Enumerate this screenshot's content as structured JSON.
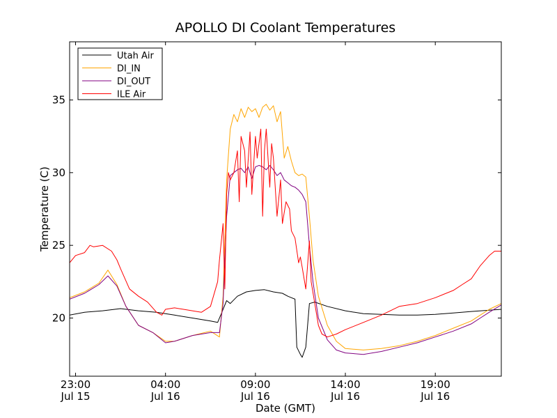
{
  "chart_data": {
    "type": "line",
    "title": "APOLLO DI Coolant Temperatures",
    "xlabel": "Date (GMT)",
    "ylabel": "Temperature (C)",
    "x_unit": "hours since Jul 15 00:00 GMT",
    "xlim": [
      22.67,
      46.67
    ],
    "ylim": [
      16,
      39
    ],
    "x_ticks": [
      {
        "value": 23,
        "time": "23:00",
        "date": "Jul 15"
      },
      {
        "value": 28,
        "time": "04:00",
        "date": "Jul 16"
      },
      {
        "value": 33,
        "time": "09:00",
        "date": "Jul 16"
      },
      {
        "value": 38,
        "time": "14:00",
        "date": "Jul 16"
      },
      {
        "value": 43,
        "time": "19:00",
        "date": "Jul 16"
      }
    ],
    "y_ticks": [
      {
        "value": 20,
        "label": "20"
      },
      {
        "value": 25,
        "label": "25"
      },
      {
        "value": 30,
        "label": "30"
      },
      {
        "value": 35,
        "label": "35"
      }
    ],
    "legend": {
      "position": "top-left"
    },
    "series": [
      {
        "name": "Utah Air",
        "color": "#000000",
        "x": [
          22.67,
          23.5,
          24.5,
          25.5,
          26.5,
          27.5,
          28.5,
          29.5,
          30.5,
          30.9,
          31.1,
          31.4,
          31.6,
          32.0,
          32.5,
          33.0,
          33.5,
          34.0,
          34.5,
          34.8,
          35.0,
          35.2,
          35.3,
          35.5,
          35.6,
          35.8,
          36.0,
          36.3,
          37.0,
          38.0,
          39.0,
          40.0,
          41.0,
          42.0,
          43.0,
          44.0,
          45.0,
          46.67
        ],
        "y": [
          20.2,
          20.4,
          20.5,
          20.65,
          20.5,
          20.4,
          20.2,
          20.0,
          19.8,
          19.7,
          20.3,
          21.2,
          21.0,
          21.5,
          21.8,
          21.9,
          21.95,
          21.8,
          21.7,
          21.5,
          21.4,
          21.3,
          18.0,
          17.5,
          17.3,
          18.0,
          21.0,
          21.1,
          20.8,
          20.5,
          20.3,
          20.25,
          20.2,
          20.2,
          20.25,
          20.35,
          20.45,
          20.6
        ]
      },
      {
        "name": "DI_IN",
        "color": "#ffa500",
        "x": [
          22.67,
          23.5,
          24.3,
          24.8,
          25.3,
          25.8,
          26.5,
          27.3,
          28.0,
          28.5,
          29.5,
          30.5,
          31.0,
          31.2,
          31.4,
          31.6,
          31.8,
          32.0,
          32.2,
          32.4,
          32.6,
          32.8,
          33.0,
          33.2,
          33.4,
          33.6,
          33.8,
          34.0,
          34.2,
          34.4,
          34.6,
          34.8,
          35.0,
          35.2,
          35.4,
          35.6,
          35.8,
          36.0,
          36.2,
          36.5,
          37.0,
          37.5,
          38.0,
          39.0,
          40.0,
          41.0,
          42.0,
          43.0,
          44.0,
          45.0,
          45.5,
          46.0,
          46.67
        ],
        "y": [
          21.4,
          21.8,
          22.4,
          23.3,
          22.3,
          20.8,
          19.5,
          19.0,
          18.4,
          18.4,
          18.8,
          19.1,
          18.7,
          21.5,
          29.5,
          33.0,
          34.0,
          33.5,
          34.4,
          33.8,
          34.5,
          34.2,
          34.4,
          33.8,
          34.5,
          34.7,
          34.3,
          34.6,
          33.5,
          34.2,
          31.0,
          31.8,
          30.8,
          30.0,
          29.8,
          29.9,
          29.7,
          27.0,
          24.0,
          21.5,
          19.5,
          18.4,
          17.9,
          17.8,
          17.9,
          18.1,
          18.4,
          18.8,
          19.3,
          19.8,
          20.2,
          20.6,
          21.0
        ]
      },
      {
        "name": "DI_OUT",
        "color": "#800080",
        "x": [
          22.67,
          23.5,
          24.3,
          24.8,
          25.3,
          25.8,
          26.5,
          27.3,
          28.0,
          28.5,
          29.5,
          30.5,
          31.0,
          31.2,
          31.4,
          31.6,
          31.8,
          32.0,
          32.2,
          32.4,
          32.6,
          32.8,
          33.0,
          33.2,
          33.4,
          33.6,
          33.8,
          34.0,
          34.2,
          34.4,
          34.6,
          34.8,
          35.0,
          35.2,
          35.4,
          35.6,
          35.8,
          36.0,
          36.2,
          36.5,
          37.0,
          37.5,
          38.0,
          39.0,
          40.0,
          41.0,
          42.0,
          43.0,
          44.0,
          45.0,
          45.5,
          46.0,
          46.67
        ],
        "y": [
          21.3,
          21.7,
          22.3,
          22.9,
          22.2,
          20.8,
          19.5,
          19.0,
          18.3,
          18.4,
          18.8,
          19.0,
          19.0,
          21.0,
          27.0,
          29.8,
          30.0,
          30.2,
          30.3,
          30.0,
          30.4,
          29.6,
          30.4,
          30.5,
          30.4,
          30.2,
          30.5,
          30.2,
          29.8,
          30.0,
          29.5,
          29.3,
          29.1,
          29.0,
          28.8,
          28.5,
          28.0,
          25.0,
          22.5,
          20.0,
          18.5,
          17.8,
          17.6,
          17.5,
          17.7,
          18.0,
          18.3,
          18.7,
          19.1,
          19.6,
          20.0,
          20.4,
          20.9
        ]
      },
      {
        "name": "ILE Air",
        "color": "#ff0000",
        "x": [
          22.67,
          23.0,
          23.5,
          23.8,
          24.0,
          24.5,
          25.0,
          25.3,
          25.5,
          26.0,
          26.5,
          27.0,
          27.5,
          27.8,
          28.0,
          28.5,
          29.0,
          29.5,
          30.0,
          30.5,
          30.9,
          31.0,
          31.2,
          31.3,
          31.4,
          31.5,
          31.6,
          31.8,
          32.0,
          32.1,
          32.2,
          32.4,
          32.5,
          32.7,
          32.8,
          33.0,
          33.1,
          33.3,
          33.4,
          33.5,
          33.6,
          33.8,
          33.9,
          34.0,
          34.2,
          34.4,
          34.5,
          34.7,
          34.9,
          35.0,
          35.2,
          35.4,
          35.5,
          35.6,
          35.8,
          36.0,
          36.1,
          36.3,
          36.5,
          36.7,
          37.0,
          37.5,
          38.0,
          39.0,
          40.0,
          41.0,
          42.0,
          43.0,
          44.0,
          44.5,
          45.0,
          45.5,
          46.0,
          46.3,
          46.67
        ],
        "y": [
          23.8,
          24.3,
          24.5,
          25.0,
          24.9,
          25.0,
          24.6,
          24.0,
          23.4,
          22.0,
          21.5,
          21.1,
          20.4,
          20.2,
          20.6,
          20.7,
          20.6,
          20.5,
          20.4,
          20.8,
          22.5,
          24.0,
          26.5,
          22.0,
          28.5,
          30.0,
          29.5,
          30.0,
          31.5,
          28.0,
          32.5,
          31.5,
          29.0,
          32.8,
          28.5,
          32.5,
          31.0,
          33.0,
          27.0,
          31.5,
          33.0,
          29.0,
          32.0,
          31.0,
          27.0,
          29.5,
          26.5,
          28.0,
          27.5,
          26.0,
          25.5,
          23.8,
          24.2,
          23.5,
          22.0,
          25.3,
          22.5,
          21.0,
          19.5,
          18.9,
          18.7,
          18.9,
          19.2,
          19.7,
          20.2,
          20.8,
          21.0,
          21.4,
          21.9,
          22.3,
          22.7,
          23.6,
          24.3,
          24.6,
          24.6
        ]
      }
    ]
  }
}
